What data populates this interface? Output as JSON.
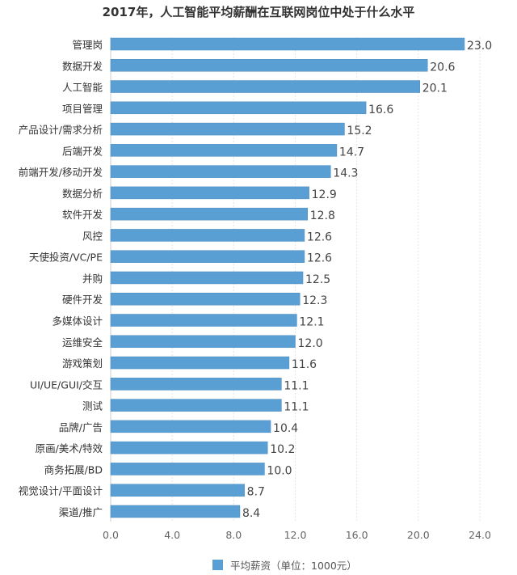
{
  "chart_data": {
    "type": "bar",
    "orientation": "horizontal",
    "title": "2017年，人工智能平均薪酬在互联网岗位中处于什么水平",
    "categories": [
      "管理岗",
      "数据开发",
      "人工智能",
      "项目管理",
      "产品设计/需求分析",
      "后端开发",
      "前端开发/移动开发",
      "数据分析",
      "软件开发",
      "风控",
      "天使投资/VC/PE",
      "并购",
      "硬件开发",
      "多媒体设计",
      "运维安全",
      "游戏策划",
      "UI/UE/GUI/交互",
      "测试",
      "品牌/广告",
      "原画/美术/特效",
      "商务拓展/BD",
      "视觉设计/平面设计",
      "渠道/推广"
    ],
    "series": [
      {
        "name": "平均薪资（单位：1000元）",
        "values": [
          23.0,
          20.6,
          20.1,
          16.6,
          15.2,
          14.7,
          14.3,
          12.9,
          12.8,
          12.6,
          12.6,
          12.5,
          12.3,
          12.1,
          12.0,
          11.6,
          11.1,
          11.1,
          10.4,
          10.2,
          10.0,
          8.7,
          8.4
        ],
        "color": "#5a9fd4"
      }
    ],
    "xlim": [
      0,
      24
    ],
    "xticks": [
      "0.0",
      "4.0",
      "8.0",
      "12.0",
      "16.0",
      "20.0",
      "24.0"
    ],
    "grid": true,
    "legend": "bottom",
    "data_labels": true
  }
}
